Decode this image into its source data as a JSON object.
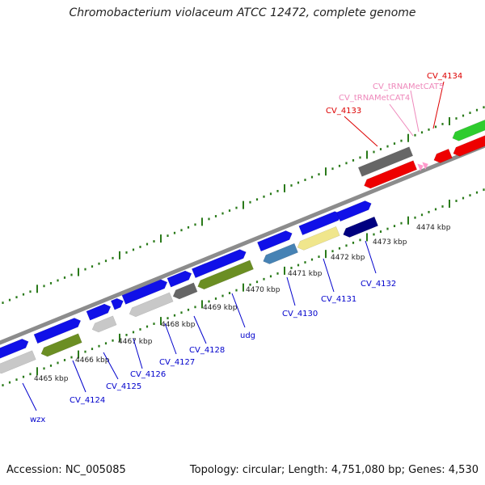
{
  "title": "Chromobacterium violaceum ATCC 12472, complete genome",
  "footer": {
    "accession": "Accession: NC_005085",
    "topology": "Topology: circular; Length: 4,751,080 bp; Genes: 4,530"
  },
  "colors": {
    "backbone": "#8c8c8c",
    "tick": "#2a7a1a",
    "cds_blue": "#1010e8",
    "cds_red": "#ee0000",
    "cds_green": "#2ecc2e",
    "olive": "#6b8e23",
    "gray_dark": "#666666",
    "gray_light": "#c8c8c8",
    "steel": "#4682b4",
    "khaki": "#f0e68c",
    "navy": "#000080",
    "pink": "#ff99cc",
    "label_blue": "#0000cc",
    "label_red": "#dd0000",
    "label_pink": "#ee88bb"
  },
  "kbp_labels": [
    "4465 kbp",
    "4466 kbp",
    "4467 kbp",
    "4468 kbp",
    "4469 kbp",
    "4470 kbp",
    "4471 kbp",
    "4472 kbp",
    "4473 kbp",
    "4474 kbp"
  ],
  "gene_labels": [
    {
      "text": "wzx",
      "color": "label_blue"
    },
    {
      "text": "CV_4124",
      "color": "label_blue"
    },
    {
      "text": "CV_4125",
      "color": "label_blue"
    },
    {
      "text": "CV_4126",
      "color": "label_blue"
    },
    {
      "text": "CV_4127",
      "color": "label_blue"
    },
    {
      "text": "CV_4128",
      "color": "label_blue"
    },
    {
      "text": "udg",
      "color": "label_blue"
    },
    {
      "text": "CV_4130",
      "color": "label_blue"
    },
    {
      "text": "CV_4131",
      "color": "label_blue"
    },
    {
      "text": "CV_4132",
      "color": "label_blue"
    },
    {
      "text": "CV_4133",
      "color": "label_red"
    },
    {
      "text": "CV_tRNAMetCAT4",
      "color": "label_pink"
    },
    {
      "text": "CV_tRNAMetCAT5",
      "color": "label_pink"
    },
    {
      "text": "CV_4134",
      "color": "label_red"
    }
  ]
}
